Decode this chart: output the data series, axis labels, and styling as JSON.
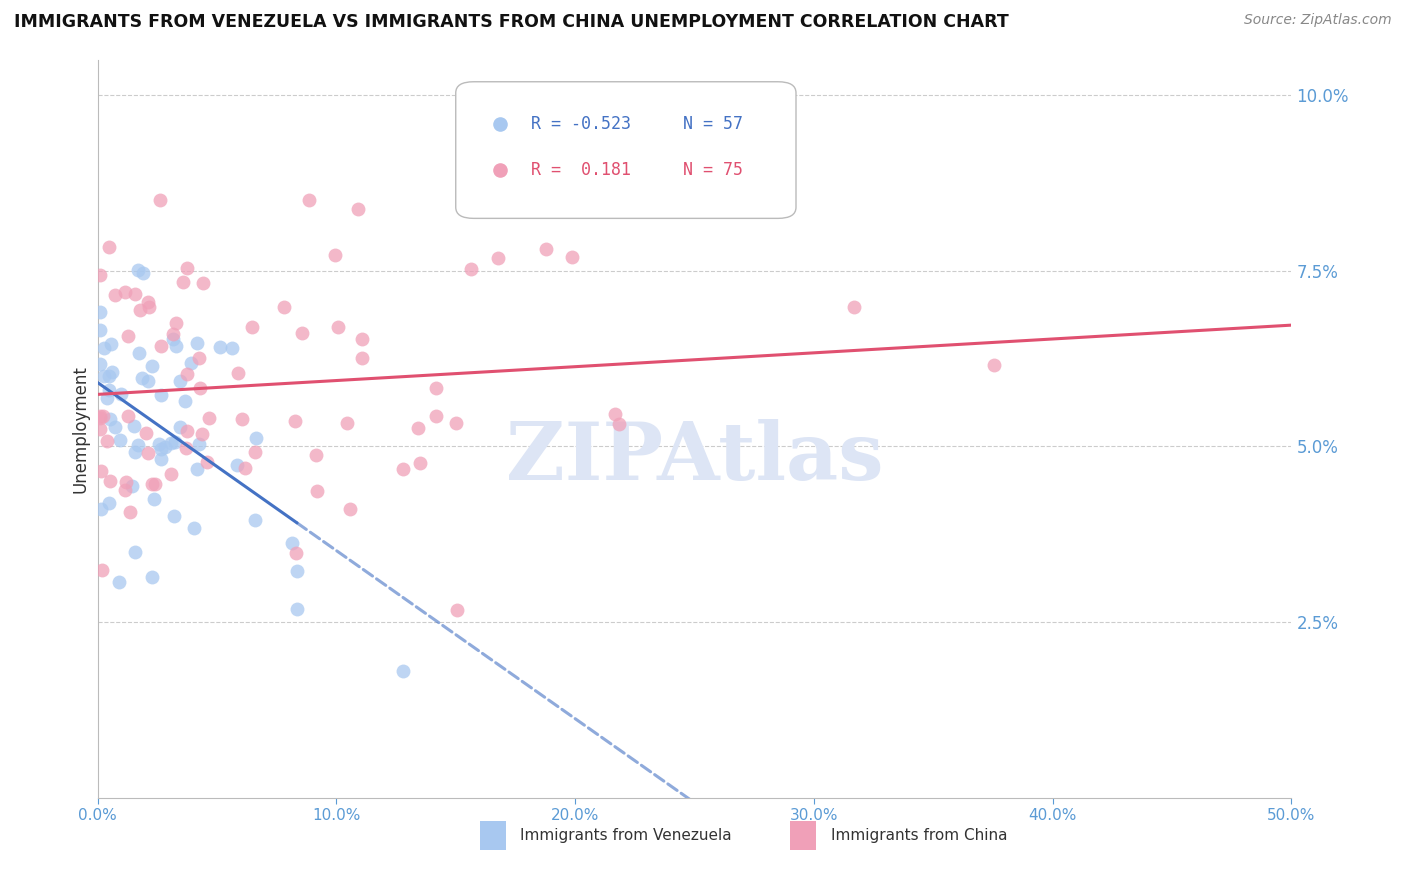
{
  "title": "IMMIGRANTS FROM VENEZUELA VS IMMIGRANTS FROM CHINA UNEMPLOYMENT CORRELATION CHART",
  "source": "Source: ZipAtlas.com",
  "ylabel": "Unemployment",
  "xmin": 0.0,
  "xmax": 0.5,
  "ymin": 0.0,
  "ymax": 0.105,
  "yticks": [
    0.025,
    0.05,
    0.075,
    0.1
  ],
  "ytick_labels": [
    "2.5%",
    "5.0%",
    "7.5%",
    "10.0%"
  ],
  "xticks": [
    0.0,
    0.1,
    0.2,
    0.3,
    0.4,
    0.5
  ],
  "xtick_labels": [
    "0.0%",
    "10.0%",
    "20.0%",
    "30.0%",
    "40.0%",
    "50.0%"
  ],
  "venezuela_R": -0.523,
  "venezuela_N": 57,
  "china_R": 0.181,
  "china_N": 75,
  "venezuela_color": "#a8c8f0",
  "china_color": "#f0a0b8",
  "trend_venezuela_color": "#4472c4",
  "trend_china_color": "#e05070",
  "tick_color": "#5b9bd5",
  "grid_color": "#cccccc",
  "background_color": "#ffffff",
  "watermark_text": "ZIPAtlas",
  "watermark_color": "#dde5f5"
}
